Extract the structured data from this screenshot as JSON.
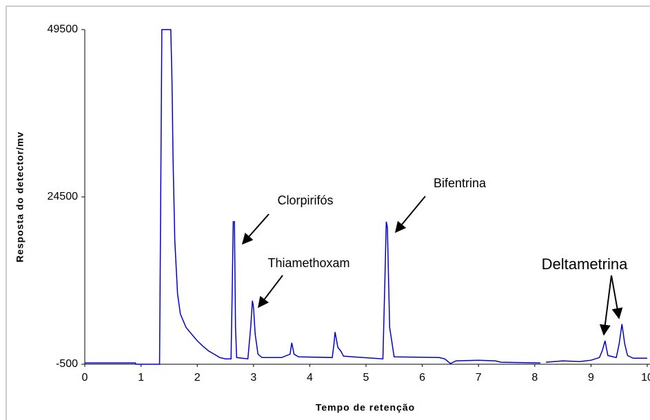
{
  "chart_data": {
    "type": "line",
    "xlabel": "Tempo de retenção",
    "ylabel": "Resposta do detector/mv",
    "xlim": [
      0,
      10
    ],
    "ylim": [
      -500,
      49500
    ],
    "xticks": [
      0,
      1,
      2,
      3,
      4,
      5,
      6,
      7,
      8,
      9,
      10
    ],
    "yticks": [
      -500,
      24500,
      49500
    ],
    "annotations": [
      "Clorpirifós",
      "Thiamethoxam",
      "Bifentrina",
      "Deltametrina"
    ],
    "series": [
      {
        "color": "#0000cc",
        "x": [
          0,
          0.9,
          0.91,
          1.33,
          1.35,
          1.37,
          1.53,
          1.55,
          1.57,
          1.6,
          1.65,
          1.7,
          1.8,
          1.9,
          2.0,
          2.1,
          2.2,
          2.3,
          2.4,
          2.5,
          2.6,
          2.62,
          2.64,
          2.66,
          2.68,
          2.7,
          2.9,
          2.95,
          2.98,
          3.0,
          3.03,
          3.08,
          3.15,
          3.5,
          3.65,
          3.68,
          3.72,
          3.8,
          4.4,
          4.43,
          4.45,
          4.5,
          4.55,
          4.6,
          5.3,
          5.33,
          5.36,
          5.38,
          5.42,
          5.5,
          6.3,
          6.4,
          6.5,
          6.6,
          7.0,
          7.3,
          7.4,
          8.1,
          8.15,
          8.2,
          8.5,
          8.8,
          9.0,
          9.15,
          9.2,
          9.25,
          9.3,
          9.45,
          9.5,
          9.55,
          9.6,
          9.65,
          9.75,
          10
        ],
        "values": [
          -300,
          -300,
          -500,
          -500,
          25000,
          49500,
          49500,
          42000,
          30000,
          18000,
          10000,
          7000,
          5000,
          4000,
          3000,
          2200,
          1500,
          1000,
          500,
          300,
          300,
          10000,
          20800,
          20800,
          5000,
          500,
          300,
          5000,
          9000,
          8000,
          4000,
          1000,
          500,
          500,
          1000,
          2700,
          1000,
          600,
          500,
          2500,
          4300,
          2000,
          1500,
          700,
          300,
          10000,
          20800,
          20000,
          5000,
          600,
          500,
          300,
          -400,
          0,
          100,
          0,
          -200,
          -300,
          null,
          -200,
          0,
          -100,
          100,
          500,
          1500,
          3000,
          800,
          500,
          2500,
          5500,
          2500,
          800,
          400,
          400
        ]
      }
    ]
  }
}
